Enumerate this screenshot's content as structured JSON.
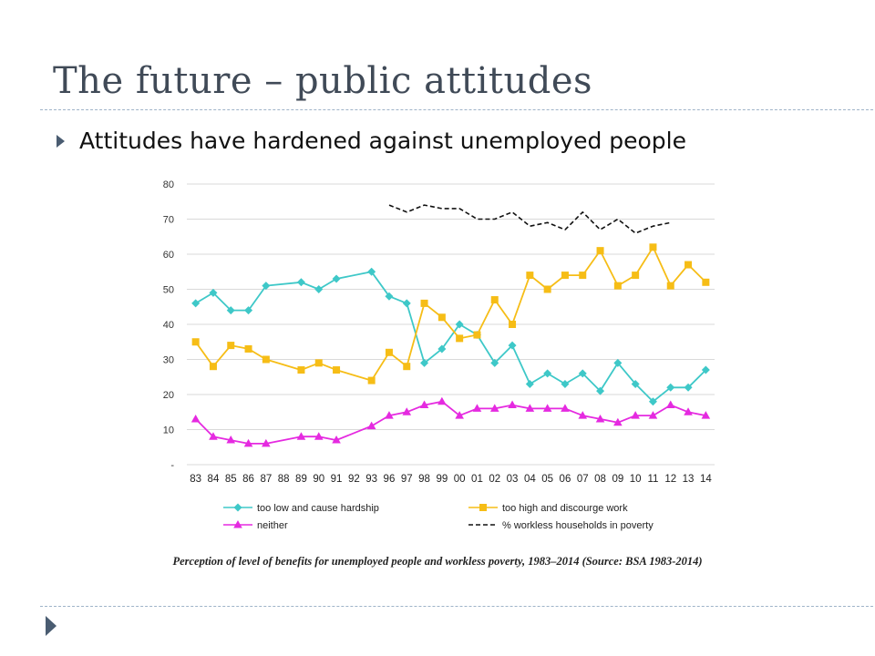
{
  "slide": {
    "title": "The future – public attitudes",
    "bullet": "Attitudes have hardened against unemployed people",
    "caption": "Perception of level of benefits for unemployed people and workless poverty, 1983–2014 (Source: BSA 1983-2014)",
    "bullet_icon": "triangle-right-icon",
    "corner_icon": "triangle-right-icon",
    "accent_color": "#4a5c71"
  },
  "chart_data": {
    "type": "line",
    "title": "",
    "xlabel": "",
    "ylabel": "",
    "ylim": [
      0,
      80
    ],
    "yticks": [
      {
        "value": 0,
        "label": "-"
      },
      {
        "value": 10,
        "label": "10"
      },
      {
        "value": 20,
        "label": "20"
      },
      {
        "value": 30,
        "label": "30"
      },
      {
        "value": 40,
        "label": "40"
      },
      {
        "value": 50,
        "label": "50"
      },
      {
        "value": 60,
        "label": "60"
      },
      {
        "value": 70,
        "label": "70"
      },
      {
        "value": 80,
        "label": "80"
      }
    ],
    "grid": "horizontal",
    "legend_position": "bottom",
    "categories": [
      "83",
      "84",
      "85",
      "86",
      "87",
      "88",
      "89",
      "90",
      "91",
      "92",
      "93",
      "96",
      "97",
      "98",
      "99",
      "00",
      "01",
      "02",
      "03",
      "04",
      "05",
      "06",
      "07",
      "08",
      "09",
      "10",
      "11",
      "12",
      "13",
      "14"
    ],
    "series": [
      {
        "name": "too low and cause hardship",
        "color": "#3ec8c8",
        "marker": "diamond",
        "dash": false,
        "values": [
          46,
          49,
          44,
          44,
          51,
          null,
          52,
          50,
          53,
          null,
          55,
          48,
          46,
          29,
          33,
          40,
          37,
          29,
          34,
          23,
          26,
          23,
          26,
          21,
          29,
          23,
          18,
          22,
          22,
          27
        ]
      },
      {
        "name": "too high and discourge work",
        "color": "#f6bd16",
        "marker": "square",
        "dash": false,
        "values": [
          35,
          28,
          34,
          33,
          30,
          null,
          27,
          29,
          27,
          null,
          24,
          32,
          28,
          46,
          42,
          36,
          37,
          47,
          40,
          54,
          50,
          54,
          54,
          61,
          51,
          54,
          62,
          51,
          57,
          52
        ]
      },
      {
        "name": "neither",
        "color": "#e52ae0",
        "marker": "triangle",
        "dash": false,
        "values": [
          13,
          8,
          7,
          6,
          6,
          null,
          8,
          8,
          7,
          null,
          11,
          14,
          15,
          17,
          18,
          14,
          16,
          16,
          17,
          16,
          16,
          16,
          14,
          13,
          12,
          14,
          14,
          17,
          15,
          14
        ]
      },
      {
        "name": "% workless households in poverty",
        "color": "#111111",
        "marker": "none",
        "dash": true,
        "values": [
          null,
          null,
          null,
          null,
          null,
          null,
          null,
          null,
          null,
          null,
          null,
          74,
          72,
          74,
          73,
          73,
          70,
          70,
          72,
          68,
          69,
          67,
          72,
          67,
          70,
          66,
          68,
          69,
          null,
          null
        ]
      }
    ]
  }
}
